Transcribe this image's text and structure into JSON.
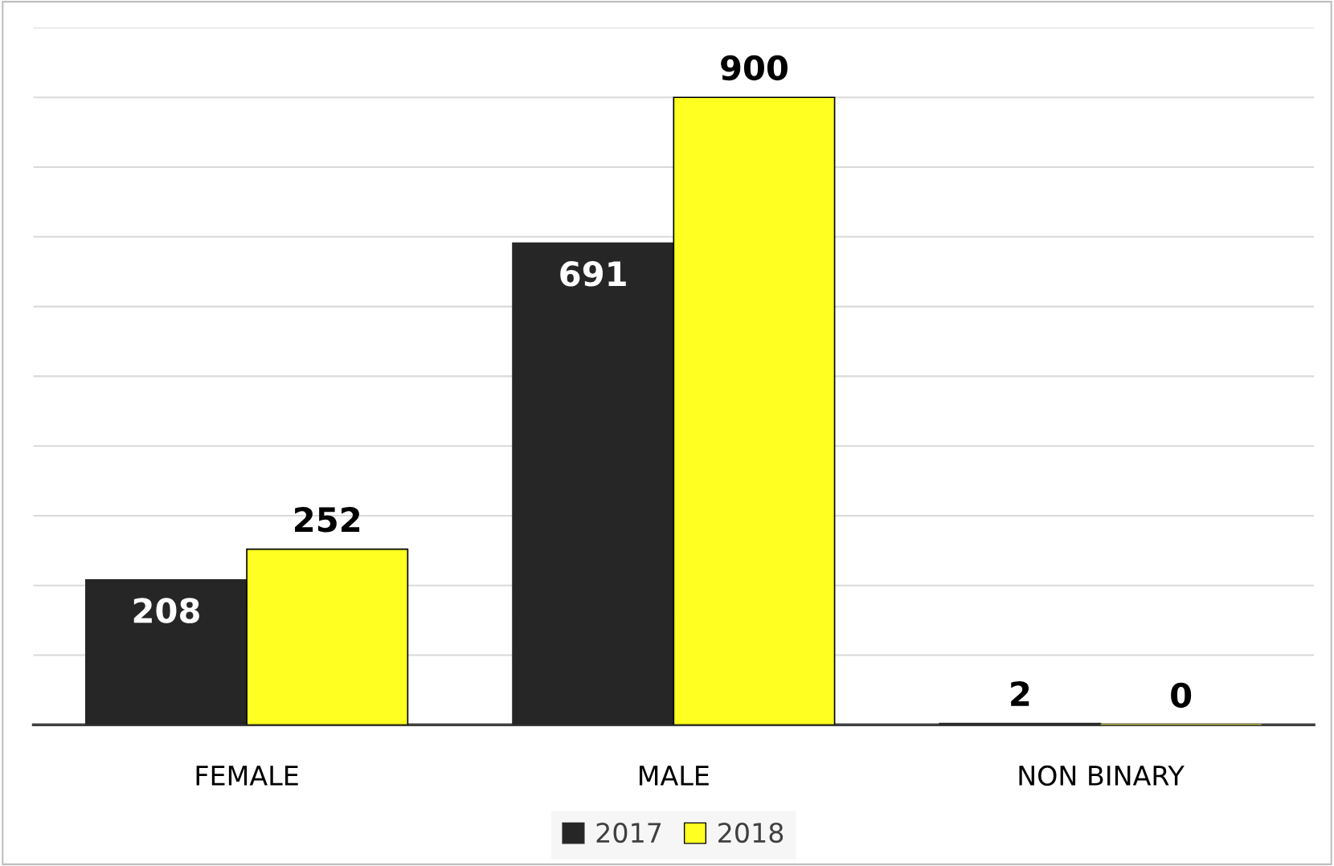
{
  "chart_data": {
    "type": "bar",
    "categories": [
      "FEMALE",
      "MALE",
      "NON BINARY"
    ],
    "series": [
      {
        "name": "2017",
        "color": "#262626",
        "values": [
          208,
          691,
          2
        ]
      },
      {
        "name": "2018",
        "color": "#ffff22",
        "values": [
          252,
          900,
          0
        ]
      }
    ],
    "ylim": [
      0,
      1000
    ],
    "yticks": [
      {
        "value": 0,
        "label": null
      },
      {
        "value": 100,
        "label": null
      },
      {
        "value": 200,
        "label": null
      },
      {
        "value": 300,
        "label": null
      },
      {
        "value": 400,
        "label": null
      },
      {
        "value": 500,
        "label": null
      },
      {
        "value": 600,
        "label": null
      },
      {
        "value": 700,
        "label": null
      },
      {
        "value": 800,
        "label": null
      },
      {
        "value": 900,
        "label": null
      },
      {
        "value": 1000,
        "label": null
      }
    ],
    "tick_labels": "x",
    "grid": "y",
    "legend": "bottom",
    "data_labels": true
  }
}
